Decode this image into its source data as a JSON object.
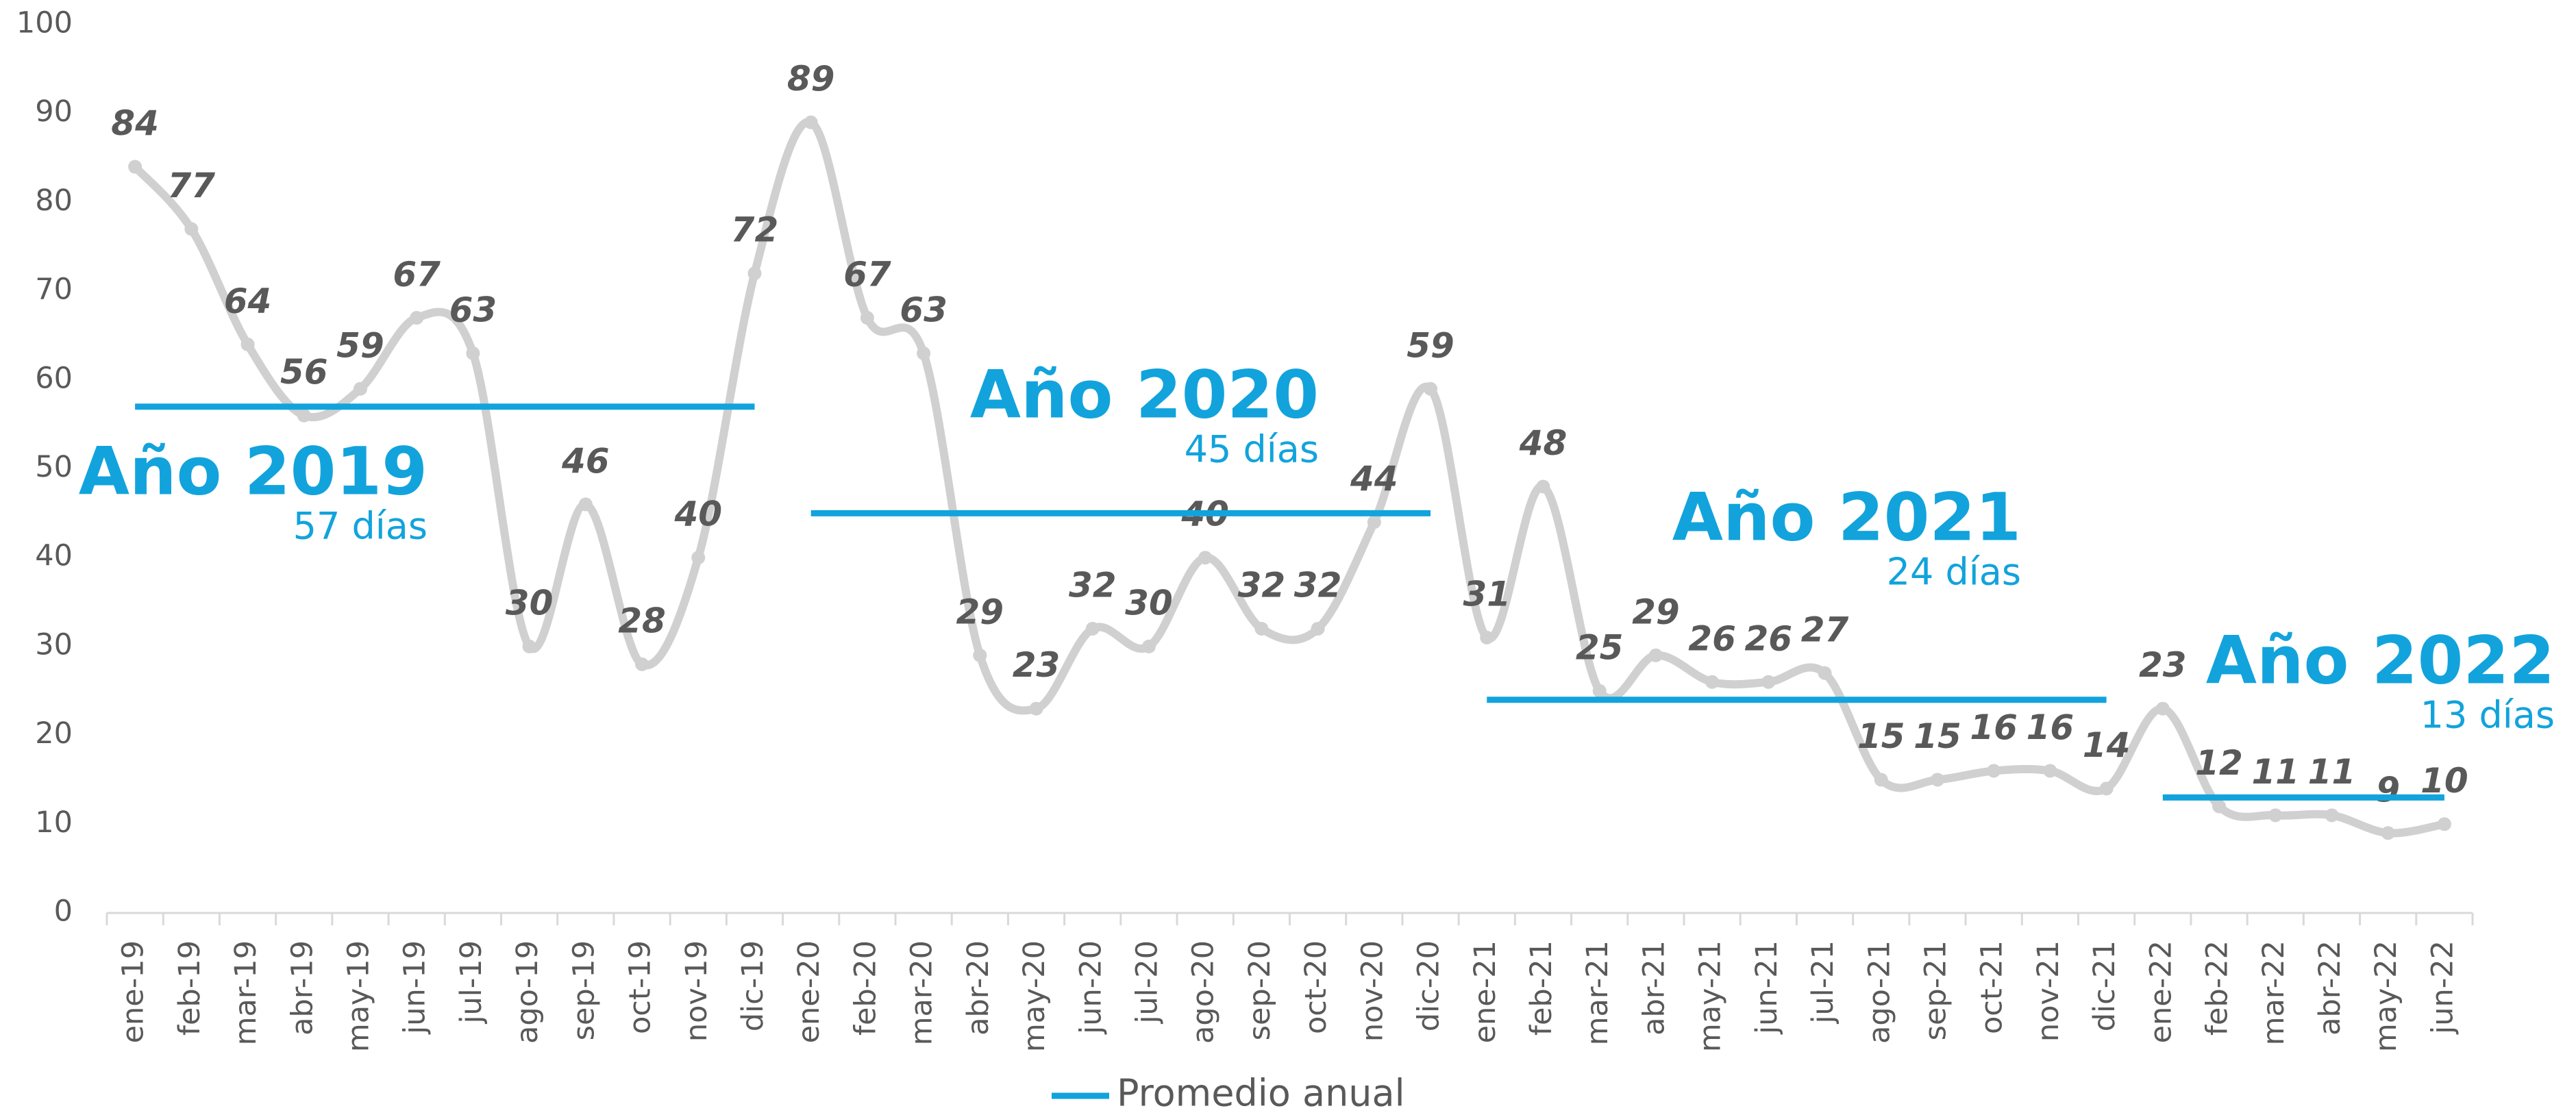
{
  "chart_data": {
    "type": "line",
    "categories": [
      "ene-19",
      "feb-19",
      "mar-19",
      "abr-19",
      "may-19",
      "jun-19",
      "jul-19",
      "ago-19",
      "sep-19",
      "oct-19",
      "nov-19",
      "dic-19",
      "ene-20",
      "feb-20",
      "mar-20",
      "abr-20",
      "may-20",
      "jun-20",
      "jul-20",
      "ago-20",
      "sep-20",
      "oct-20",
      "nov-20",
      "dic-20",
      "ene-21",
      "feb-21",
      "mar-21",
      "abr-21",
      "may-21",
      "jun-21",
      "jul-21",
      "ago-21",
      "sep-21",
      "oct-21",
      "nov-21",
      "dic-21",
      "ene-22",
      "feb-22",
      "mar-22",
      "abr-22",
      "may-22",
      "jun-22"
    ],
    "series": [
      {
        "color": "#d0d0d0",
        "values": [
          84,
          77,
          64,
          56,
          59,
          67,
          63,
          30,
          46,
          28,
          40,
          72,
          89,
          67,
          63,
          29,
          23,
          32,
          30,
          40,
          32,
          32,
          44,
          59,
          31,
          48,
          25,
          29,
          26,
          26,
          27,
          15,
          15,
          16,
          16,
          14,
          23,
          12,
          11,
          11,
          9,
          10
        ]
      },
      {
        "name": "Promedio anual",
        "color": "#12a3dc",
        "values": [
          57,
          57,
          57,
          57,
          57,
          57,
          57,
          57,
          57,
          57,
          57,
          57,
          45,
          45,
          45,
          45,
          45,
          45,
          45,
          45,
          45,
          45,
          45,
          45,
          24,
          24,
          24,
          24,
          24,
          24,
          24,
          24,
          24,
          24,
          24,
          24,
          13,
          13,
          13,
          13,
          13,
          13
        ]
      }
    ],
    "annotations": [
      {
        "text": "Año 2019",
        "label": "57 días"
      },
      {
        "text": "Año 2020",
        "label": "45 días"
      },
      {
        "text": "Año 2021",
        "label": "24 días"
      },
      {
        "text": "Año 2022",
        "label": "13 días"
      }
    ],
    "ylim": [
      0,
      100
    ],
    "yticks": [
      0,
      10,
      20,
      30,
      40,
      50,
      60,
      70,
      80,
      90,
      100
    ],
    "grid": false,
    "legend": "bottom"
  }
}
